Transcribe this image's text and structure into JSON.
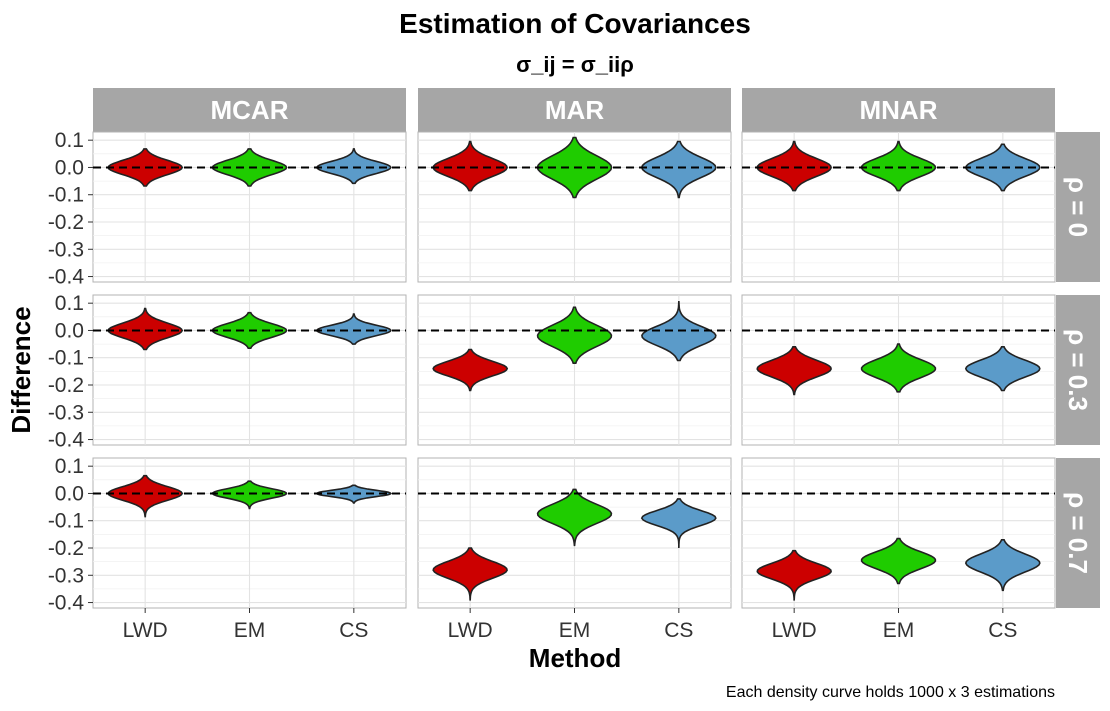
{
  "chart_data": {
    "type": "violin",
    "title": "Estimation of Covariances",
    "subtitle": "σ_ij = σ_iiρ",
    "xlabel": "Method",
    "ylabel": "Difference",
    "caption": "Each density curve holds 1000 x 3 estimations",
    "ylim": [
      -0.42,
      0.13
    ],
    "yticks": [
      0.1,
      0.0,
      -0.1,
      -0.2,
      -0.3,
      -0.4
    ],
    "ytick_labels": [
      "0.1",
      "0.0",
      "-0.1",
      "-0.2",
      "-0.3",
      "-0.4"
    ],
    "reference_line": 0.0,
    "grid": true,
    "categories": [
      "LWD",
      "EM",
      "CS"
    ],
    "colors": {
      "LWD": "#cc0000",
      "EM": "#1fcc00",
      "CS": "#5b9bc9"
    },
    "col_facets": [
      "MCAR",
      "MAR",
      "MNAR"
    ],
    "row_facets": [
      "ρ = 0",
      "ρ = 0.3",
      "ρ = 0.7"
    ],
    "panels": [
      {
        "col": "MCAR",
        "row": "ρ = 0",
        "violins": [
          {
            "method": "LWD",
            "center": 0.0,
            "min": -0.068,
            "max": 0.068
          },
          {
            "method": "EM",
            "center": 0.0,
            "min": -0.068,
            "max": 0.068
          },
          {
            "method": "CS",
            "center": 0.0,
            "min": -0.058,
            "max": 0.068
          }
        ]
      },
      {
        "col": "MAR",
        "row": "ρ = 0",
        "violins": [
          {
            "method": "LWD",
            "center": 0.0,
            "min": -0.085,
            "max": 0.095
          },
          {
            "method": "EM",
            "center": 0.0,
            "min": -0.11,
            "max": 0.11
          },
          {
            "method": "CS",
            "center": 0.0,
            "min": -0.11,
            "max": 0.095
          }
        ]
      },
      {
        "col": "MNAR",
        "row": "ρ = 0",
        "violins": [
          {
            "method": "LWD",
            "center": 0.0,
            "min": -0.085,
            "max": 0.095
          },
          {
            "method": "EM",
            "center": 0.0,
            "min": -0.085,
            "max": 0.095
          },
          {
            "method": "CS",
            "center": 0.0,
            "min": -0.085,
            "max": 0.085
          }
        ]
      },
      {
        "col": "MCAR",
        "row": "ρ = 0.3",
        "violins": [
          {
            "method": "LWD",
            "center": 0.0,
            "min": -0.07,
            "max": 0.08
          },
          {
            "method": "EM",
            "center": 0.0,
            "min": -0.065,
            "max": 0.065
          },
          {
            "method": "CS",
            "center": 0.0,
            "min": -0.05,
            "max": 0.06
          }
        ]
      },
      {
        "col": "MAR",
        "row": "ρ = 0.3",
        "violins": [
          {
            "method": "LWD",
            "center": -0.14,
            "min": -0.22,
            "max": -0.07
          },
          {
            "method": "EM",
            "center": -0.02,
            "min": -0.12,
            "max": 0.085
          },
          {
            "method": "CS",
            "center": -0.02,
            "min": -0.11,
            "max": 0.105
          }
        ]
      },
      {
        "col": "MNAR",
        "row": "ρ = 0.3",
        "violins": [
          {
            "method": "LWD",
            "center": -0.14,
            "min": -0.235,
            "max": -0.06
          },
          {
            "method": "EM",
            "center": -0.14,
            "min": -0.225,
            "max": -0.05
          },
          {
            "method": "CS",
            "center": -0.14,
            "min": -0.22,
            "max": -0.06
          }
        ]
      },
      {
        "col": "MCAR",
        "row": "ρ = 0.7",
        "violins": [
          {
            "method": "LWD",
            "center": 0.0,
            "min": -0.085,
            "max": 0.065
          },
          {
            "method": "EM",
            "center": 0.0,
            "min": -0.055,
            "max": 0.045
          },
          {
            "method": "CS",
            "center": 0.0,
            "min": -0.035,
            "max": 0.03
          }
        ]
      },
      {
        "col": "MAR",
        "row": "ρ = 0.7",
        "violins": [
          {
            "method": "LWD",
            "center": -0.28,
            "min": -0.39,
            "max": -0.2
          },
          {
            "method": "EM",
            "center": -0.075,
            "min": -0.19,
            "max": 0.015
          },
          {
            "method": "CS",
            "center": -0.09,
            "min": -0.2,
            "max": -0.02
          }
        ]
      },
      {
        "col": "MNAR",
        "row": "ρ = 0.7",
        "violins": [
          {
            "method": "LWD",
            "center": -0.285,
            "min": -0.39,
            "max": -0.21
          },
          {
            "method": "EM",
            "center": -0.245,
            "min": -0.33,
            "max": -0.165
          },
          {
            "method": "CS",
            "center": -0.255,
            "min": -0.355,
            "max": -0.17
          }
        ]
      }
    ]
  }
}
